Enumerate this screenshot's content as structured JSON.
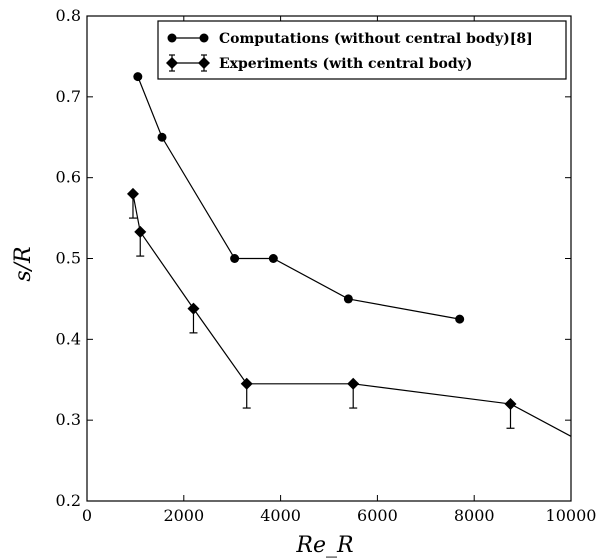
{
  "chart_data": {
    "type": "line",
    "xlabel": "Re_R",
    "ylabel": "s/R",
    "xlim": [
      0,
      10000
    ],
    "ylim": [
      0.2,
      0.8
    ],
    "x_ticks": [
      0,
      2000,
      4000,
      6000,
      8000,
      10000
    ],
    "y_ticks": [
      0.2,
      0.3,
      0.4,
      0.5,
      0.6,
      0.7,
      0.8
    ],
    "x_tick_labels": [
      "0",
      "2000",
      "4000",
      "6000",
      "8000",
      "10000"
    ],
    "y_tick_labels": [
      "0.2",
      "0.3",
      "0.4",
      "0.5",
      "0.6",
      "0.7",
      "0.8"
    ],
    "grid": false,
    "legend_position": "top-right",
    "series": [
      {
        "name": "Computations (without central body)[8]",
        "marker": "circle",
        "x": [
          1050,
          1550,
          3050,
          3850,
          5400,
          7700
        ],
        "y": [
          0.725,
          0.65,
          0.5,
          0.5,
          0.45,
          0.425
        ]
      },
      {
        "name": "Experiments (with central body)",
        "marker": "diamond",
        "error_bars": true,
        "x": [
          950,
          1100,
          2200,
          3300,
          5500,
          8750
        ],
        "y": [
          0.58,
          0.533,
          0.438,
          0.345,
          0.345,
          0.32
        ],
        "y_err_lower": [
          0.03,
          0.03,
          0.03,
          0.03,
          0.03,
          0.03
        ],
        "y_err_upper": [
          0.0,
          0.0,
          0.0,
          0.0,
          0.0,
          0.0
        ],
        "tail_x": 10000,
        "tail_y": 0.28
      }
    ]
  }
}
